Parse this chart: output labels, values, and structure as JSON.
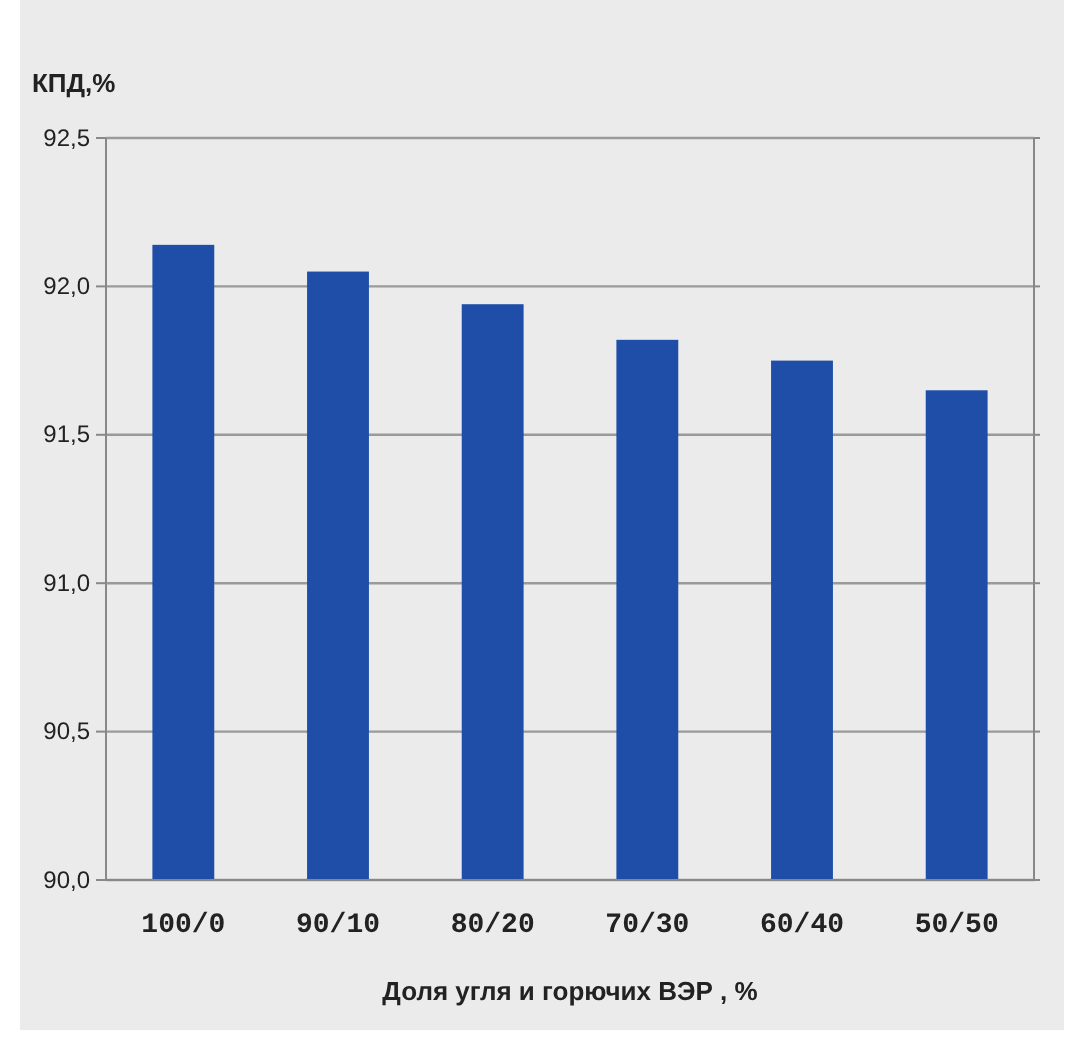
{
  "chart_data": {
    "type": "bar",
    "ylabel": "КПД,%",
    "xlabel": "Доля угля и горючих ВЭР , %",
    "categories": [
      "100/0",
      "90/10",
      "80/20",
      "70/30",
      "60/40",
      "50/50"
    ],
    "values": [
      92.14,
      92.05,
      91.94,
      91.82,
      91.75,
      91.65
    ],
    "color": "#1f4ea8",
    "ylim": [
      90,
      92.5
    ],
    "yticks": [
      {
        "value": 90,
        "label": "90,0"
      },
      {
        "value": 90.5,
        "label": "90,5"
      },
      {
        "value": 91,
        "label": "91,0"
      },
      {
        "value": 91.5,
        "label": "91,5"
      },
      {
        "value": 92,
        "label": "92,0"
      },
      {
        "value": 92.5,
        "label": "92,5"
      }
    ],
    "grid": "y"
  }
}
